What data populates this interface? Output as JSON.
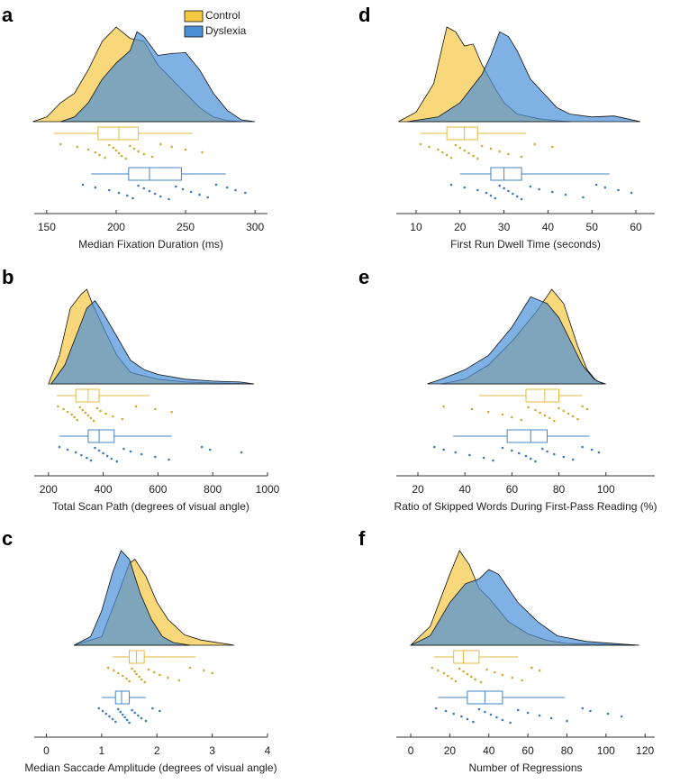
{
  "chart_data": [
    {
      "type": "raincloud",
      "label": "a",
      "xlabel": "Median Fixation Duration (ms)",
      "xlim": [
        141,
        309
      ],
      "xticks": [
        150,
        200,
        250,
        300
      ],
      "series": [
        {
          "name": "Control",
          "color": "#f5c842",
          "density": {
            "x": [
              140,
              150,
              160,
              170,
              180,
              190,
              200,
              210,
              220,
              230,
              240,
              250,
              260,
              270,
              280,
              290
            ],
            "y": [
              0,
              0.05,
              0.2,
              0.3,
              0.55,
              0.85,
              1.0,
              0.88,
              0.85,
              0.6,
              0.45,
              0.3,
              0.15,
              0.05,
              0.01,
              0
            ]
          },
          "box": {
            "min": 155,
            "q1": 187,
            "median": 202,
            "q3": 216,
            "max": 255
          },
          "points": [
            160,
            172,
            180,
            185,
            188,
            192,
            195,
            198,
            200,
            202,
            204,
            207,
            210,
            213,
            216,
            220,
            226,
            232,
            240,
            250,
            262
          ]
        },
        {
          "name": "Dyslexia",
          "color": "#4a90d9",
          "density": {
            "x": [
              160,
              170,
              180,
              190,
              200,
              210,
              215,
              220,
              230,
              240,
              250,
              260,
              270,
              280,
              290,
              300
            ],
            "y": [
              0,
              0.05,
              0.2,
              0.45,
              0.62,
              0.75,
              0.95,
              0.9,
              0.7,
              0.72,
              0.73,
              0.55,
              0.3,
              0.12,
              0.02,
              0
            ]
          },
          "box": {
            "min": 182,
            "q1": 209,
            "median": 224,
            "q3": 247,
            "max": 279
          },
          "points": [
            176,
            185,
            195,
            202,
            208,
            212,
            216,
            220,
            224,
            228,
            232,
            238,
            243,
            248,
            254,
            260,
            266,
            272,
            280,
            286,
            293
          ]
        }
      ]
    },
    {
      "type": "raincloud",
      "label": "b",
      "xlabel": "Total Scan Path (degrees of visual angle)",
      "xlim": [
        148,
        1000
      ],
      "xticks": [
        200,
        400,
        600,
        800,
        1000
      ],
      "series": [
        {
          "color": "#f5c842",
          "density": {
            "x": [
              200,
              240,
              280,
              320,
              340,
              360,
              400,
              450,
              500,
              600,
              700,
              800,
              900,
              950
            ],
            "y": [
              0,
              0.3,
              0.8,
              0.95,
              1.0,
              0.85,
              0.6,
              0.3,
              0.12,
              0.05,
              0.02,
              0.01,
              0.005,
              0
            ]
          },
          "box": {
            "min": 230,
            "q1": 300,
            "median": 345,
            "q3": 385,
            "max": 570
          },
          "points": [
            235,
            255,
            270,
            285,
            295,
            305,
            315,
            325,
            335,
            345,
            355,
            365,
            378,
            390,
            410,
            435,
            470,
            520,
            590,
            650
          ]
        },
        {
          "color": "#4a90d9",
          "density": {
            "x": [
              210,
              260,
              300,
              340,
              370,
              400,
              450,
              500,
              550,
              600,
              700,
              800,
              900,
              950
            ],
            "y": [
              0,
              0.2,
              0.5,
              0.8,
              0.88,
              0.75,
              0.5,
              0.25,
              0.15,
              0.1,
              0.05,
              0.03,
              0.02,
              0
            ]
          },
          "box": {
            "min": 240,
            "q1": 345,
            "median": 385,
            "q3": 440,
            "max": 650
          },
          "points": [
            240,
            270,
            300,
            320,
            340,
            355,
            370,
            385,
            400,
            415,
            430,
            450,
            475,
            500,
            540,
            590,
            640,
            760,
            790,
            905
          ]
        }
      ]
    },
    {
      "type": "raincloud",
      "label": "c",
      "xlabel": "Median Saccade Amplitude (degrees of visual angle)",
      "xlim": [
        -0.22,
        4.0
      ],
      "xticks": [
        0,
        1,
        2,
        3,
        4
      ],
      "series": [
        {
          "color": "#f5c842",
          "density": {
            "x": [
              0.5,
              1.0,
              1.3,
              1.5,
              1.6,
              1.8,
              2.0,
              2.2,
              2.5,
              2.8,
              3.0,
              3.3,
              3.4
            ],
            "y": [
              0,
              0.1,
              0.6,
              0.95,
              1.0,
              0.8,
              0.5,
              0.3,
              0.12,
              0.06,
              0.04,
              0.01,
              0
            ]
          },
          "box": {
            "min": 1.2,
            "q1": 1.5,
            "median": 1.63,
            "q3": 1.77,
            "max": 2.7
          },
          "points": [
            1.12,
            1.22,
            1.3,
            1.38,
            1.45,
            1.5,
            1.55,
            1.6,
            1.63,
            1.68,
            1.72,
            1.78,
            1.85,
            1.95,
            2.05,
            2.2,
            2.4,
            2.6,
            2.85,
            3.0
          ]
        },
        {
          "color": "#4a90d9",
          "density": {
            "x": [
              0.5,
              0.8,
              1.0,
              1.2,
              1.35,
              1.5,
              1.7,
              1.9,
              2.1,
              2.3,
              2.6
            ],
            "y": [
              0,
              0.1,
              0.4,
              0.85,
              1.1,
              1.0,
              0.6,
              0.3,
              0.1,
              0.03,
              0
            ]
          },
          "box": {
            "min": 1.0,
            "q1": 1.25,
            "median": 1.36,
            "q3": 1.5,
            "max": 1.8
          },
          "points": [
            0.95,
            1.02,
            1.08,
            1.14,
            1.2,
            1.25,
            1.3,
            1.34,
            1.38,
            1.42,
            1.46,
            1.5,
            1.55,
            1.6,
            1.66,
            1.72,
            1.8,
            1.92,
            2.05
          ]
        }
      ]
    },
    {
      "type": "raincloud",
      "label": "d",
      "xlabel": "First Run Dwell Time (seconds)",
      "xlim": [
        5.5,
        64.3
      ],
      "xticks": [
        10,
        20,
        30,
        40,
        50,
        60
      ],
      "series": [
        {
          "color": "#f5c842",
          "density": {
            "x": [
              6,
              10,
              14,
              17,
              19,
              21,
              23,
              25,
              28,
              30,
              33,
              38,
              42,
              45
            ],
            "y": [
              0,
              0.1,
              0.4,
              1.0,
              0.95,
              0.8,
              0.82,
              0.6,
              0.35,
              0.2,
              0.08,
              0.03,
              0.01,
              0
            ]
          },
          "box": {
            "min": 11,
            "q1": 17,
            "median": 21,
            "q3": 24,
            "max": 35
          },
          "points": [
            11,
            13,
            15,
            16,
            17,
            18,
            19,
            20,
            21,
            22,
            23,
            24,
            25,
            27,
            29,
            31,
            34,
            37,
            41
          ]
        },
        {
          "color": "#4a90d9",
          "density": {
            "x": [
              8,
              15,
              20,
              25,
              27,
              29,
              31,
              33,
              36,
              39,
              42,
              45,
              50,
              55,
              58,
              61
            ],
            "y": [
              0,
              0.05,
              0.2,
              0.5,
              0.7,
              0.95,
              0.9,
              0.75,
              0.45,
              0.3,
              0.15,
              0.08,
              0.05,
              0.06,
              0.03,
              0
            ]
          },
          "box": {
            "min": 20,
            "q1": 27,
            "median": 30,
            "q3": 34,
            "max": 54
          },
          "points": [
            18,
            21,
            24,
            26,
            27,
            28,
            29,
            30,
            31,
            32,
            33,
            34,
            36,
            38,
            41,
            44,
            48,
            51,
            53,
            56,
            59
          ]
        }
      ]
    },
    {
      "type": "raincloud",
      "label": "e",
      "xlabel": "Ratio of Skipped Words During First-Pass Reading (%)",
      "xlim": [
        10.8,
        120.8
      ],
      "xticks": [
        20,
        40,
        60,
        80,
        100
      ],
      "series": [
        {
          "color": "#f5c842",
          "density": {
            "x": [
              30,
              40,
              50,
              60,
              70,
              77,
              82,
              88,
              92,
              96,
              100
            ],
            "y": [
              0,
              0.05,
              0.2,
              0.45,
              0.75,
              1.0,
              0.85,
              0.4,
              0.15,
              0.03,
              0
            ]
          },
          "box": {
            "min": 46,
            "q1": 66,
            "median": 74,
            "q3": 80,
            "max": 90
          },
          "points": [
            31,
            43,
            50,
            56,
            60,
            64,
            67,
            70,
            72,
            74,
            76,
            78,
            80,
            82,
            84,
            86,
            88,
            90,
            92
          ]
        },
        {
          "color": "#4a90d9",
          "density": {
            "x": [
              24,
              30,
              40,
              50,
              60,
              68,
              75,
              80,
              85,
              90,
              95,
              99
            ],
            "y": [
              0,
              0.05,
              0.15,
              0.3,
              0.6,
              0.92,
              0.85,
              0.7,
              0.45,
              0.2,
              0.05,
              0
            ]
          },
          "box": {
            "min": 35,
            "q1": 58,
            "median": 68,
            "q3": 75,
            "max": 93
          },
          "points": [
            27,
            31,
            36,
            42,
            48,
            52,
            56,
            60,
            63,
            66,
            68,
            70,
            73,
            75,
            78,
            82,
            86,
            90,
            94,
            97
          ]
        }
      ]
    },
    {
      "type": "raincloud",
      "label": "f",
      "xlabel": "Number of Regressions",
      "xlim": [
        -7.4,
        125
      ],
      "xticks": [
        0,
        20,
        40,
        60,
        80,
        100,
        120
      ],
      "series": [
        {
          "color": "#f5c842",
          "density": {
            "x": [
              0,
              10,
              20,
              25,
              30,
              35,
              40,
              50,
              60,
              70,
              80,
              100,
              115
            ],
            "y": [
              0,
              0.2,
              0.75,
              1.0,
              0.85,
              0.6,
              0.5,
              0.25,
              0.12,
              0.05,
              0.02,
              0.01,
              0
            ]
          },
          "box": {
            "min": 12,
            "q1": 22,
            "median": 27,
            "q3": 35,
            "max": 55
          },
          "points": [
            11,
            14,
            17,
            19,
            21,
            23,
            25,
            27,
            29,
            31,
            33,
            36,
            39,
            43,
            47,
            52,
            57,
            62,
            66
          ]
        },
        {
          "color": "#4a90d9",
          "density": {
            "x": [
              0,
              10,
              20,
              28,
              35,
              40,
              45,
              55,
              65,
              75,
              90,
              110,
              117
            ],
            "y": [
              0,
              0.1,
              0.45,
              0.65,
              0.7,
              0.8,
              0.75,
              0.45,
              0.25,
              0.1,
              0.04,
              0.01,
              0
            ]
          },
          "box": {
            "min": 14,
            "q1": 29,
            "median": 38,
            "q3": 47,
            "max": 79
          },
          "points": [
            13,
            18,
            22,
            26,
            29,
            32,
            35,
            38,
            41,
            44,
            47,
            51,
            55,
            60,
            66,
            72,
            80,
            88,
            92,
            101,
            108
          ]
        }
      ]
    }
  ]
}
